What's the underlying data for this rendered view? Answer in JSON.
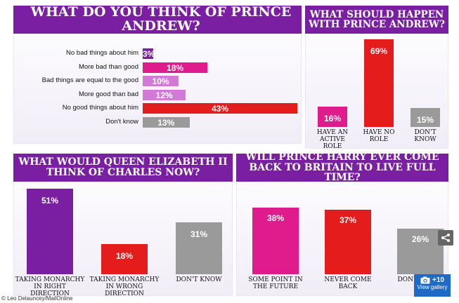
{
  "chart_data": [
    {
      "type": "bar",
      "orientation": "horizontal",
      "title": "WHAT DO YOU THINK OF PRINCE ANDREW?",
      "categories": [
        "No bad things about him",
        "More bad than good",
        "Bad things are equal to the good",
        "More good than bad",
        "No good things about him",
        "Don't know"
      ],
      "values": [
        3,
        18,
        10,
        12,
        43,
        13
      ],
      "labels": [
        "3%",
        "18%",
        "10%",
        "12%",
        "43%",
        "13%"
      ],
      "colors": [
        "#7a1fa2",
        "#e01c8c",
        "#d37ad8",
        "#d37ad8",
        "#e41c1c",
        "#9a9a9a"
      ],
      "xlim": [
        0,
        43
      ]
    },
    {
      "type": "bar",
      "title": "WHAT SHOULD HAPPEN WITH PRINCE ANDREW?",
      "categories": [
        "HAVE AN ACTIVE ROLE",
        "HAVE NO ROLE",
        "DON'T KNOW"
      ],
      "values": [
        16,
        69,
        15
      ],
      "labels": [
        "16%",
        "69%",
        "15%"
      ],
      "colors": [
        "#e01c8c",
        "#e41c1c",
        "#9a9a9a"
      ],
      "ylim": [
        0,
        69
      ]
    },
    {
      "type": "bar",
      "title": "WHAT WOULD QUEEN ELIZABETH II THINK OF CHARLES NOW?",
      "categories": [
        "TAKING MONARCHY IN RIGHT DIRECTION",
        "TAKING MONARCHY IN WRONG DIRECTION",
        "DON'T KNOW"
      ],
      "values": [
        51,
        18,
        31
      ],
      "labels": [
        "51%",
        "18%",
        "31%"
      ],
      "colors": [
        "#7a1fa2",
        "#e41c1c",
        "#9a9a9a"
      ],
      "ylim": [
        0,
        51
      ]
    },
    {
      "type": "bar",
      "title": "WILL PRINCE HARRY EVER COME BACK TO BRITAIN TO LIVE FULL TIME?",
      "categories": [
        "SOME POINT IN THE FUTURE",
        "NEVER COME BACK",
        "DON'T KNOW"
      ],
      "values": [
        38,
        37,
        26
      ],
      "labels": [
        "38%",
        "37%",
        "26%"
      ],
      "colors": [
        "#e01c8c",
        "#e41c1c",
        "#9a9a9a"
      ],
      "ylim": [
        0,
        38
      ]
    }
  ],
  "credit": "© Leo Delauncey/MailOnline",
  "gallery": {
    "count": "+10",
    "label": "View gallery"
  },
  "icons": {
    "share": "share-icon",
    "camera": "camera-icon"
  }
}
